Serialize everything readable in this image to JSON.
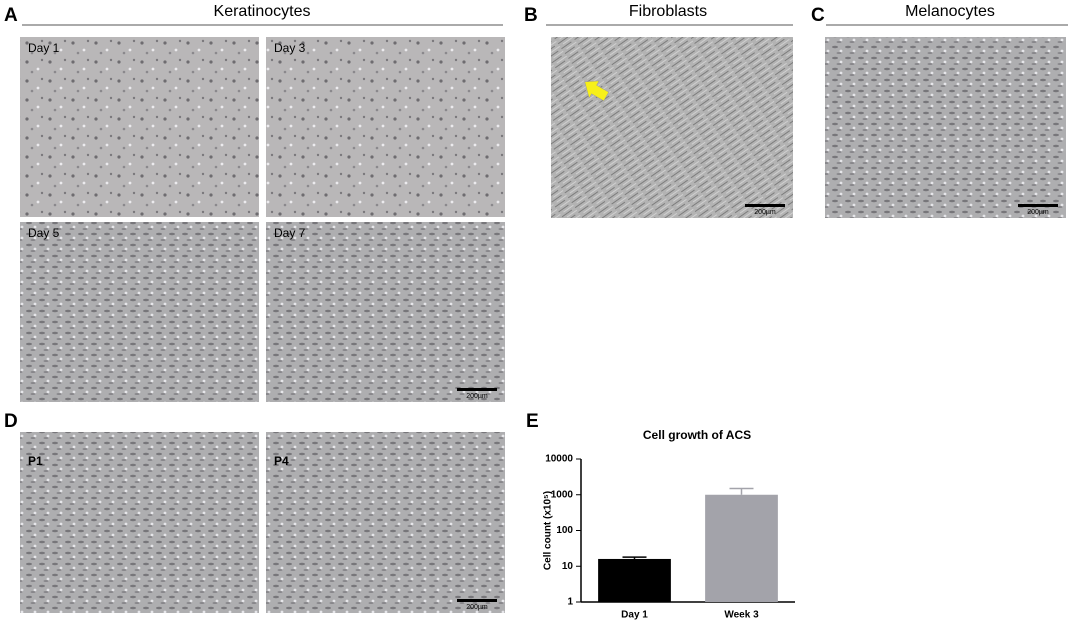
{
  "panels": [
    {
      "letter": "A",
      "title": "Keratinocytes",
      "images": [
        {
          "label": "Day 1"
        },
        {
          "label": "Day 3"
        },
        {
          "label": "Day 5"
        },
        {
          "label": "Day 7",
          "scale_bar": "200µm"
        }
      ]
    },
    {
      "letter": "B",
      "title": "Fibroblasts",
      "images": [
        {
          "scale_bar": "200µm"
        }
      ]
    },
    {
      "letter": "C",
      "title": "Melanocytes",
      "images": [
        {
          "scale_bar": "200µm"
        }
      ]
    },
    {
      "letter": "D",
      "images": [
        {
          "label": "P1"
        },
        {
          "label": "P4",
          "scale_bar": "200µm"
        }
      ]
    },
    {
      "letter": "E"
    }
  ],
  "chart_data": {
    "type": "bar",
    "title": "Cell growth of ACS",
    "y_label": "Cell count (x10⁵)",
    "categories": [
      "Day 1",
      "Week 3"
    ],
    "values": [
      16,
      1000
    ],
    "errors": [
      2,
      500
    ],
    "colors": [
      "#000000",
      "#a3a3aa"
    ],
    "log_scale": true,
    "ylim": [
      1,
      10000
    ],
    "yticks": [
      1,
      10,
      100,
      1000,
      10000
    ]
  }
}
